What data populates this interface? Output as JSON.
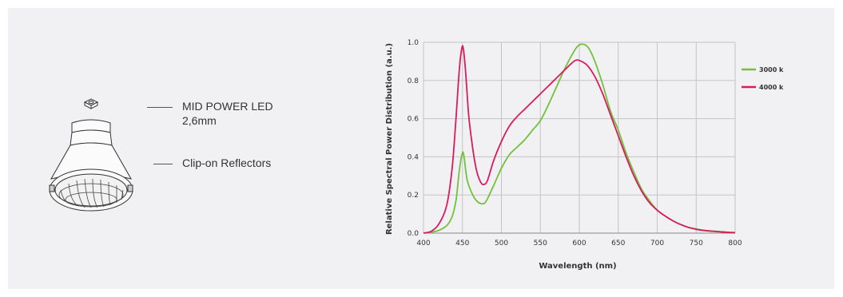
{
  "illustration": {
    "callouts": [
      {
        "line1": "MID POWER LED",
        "line2": "2,6mm"
      },
      {
        "line1": "Clip-on Reflectors",
        "line2": ""
      }
    ]
  },
  "chart_data": {
    "type": "line",
    "title": "",
    "xlabel": "Wavelength (nm)",
    "ylabel": "Relative Spectral Power Distribution (a.u.)",
    "xlim": [
      400,
      800
    ],
    "ylim": [
      0,
      1.0
    ],
    "xticks": [
      400,
      450,
      500,
      550,
      600,
      650,
      700,
      750,
      800
    ],
    "yticks": [
      0.0,
      0.2,
      0.4,
      0.6,
      0.8,
      1.0
    ],
    "ytick_labels": [
      "0.0",
      "0.2",
      "0.4",
      "0.6",
      "0.8",
      "1.0"
    ],
    "grid": true,
    "legend_position": "right",
    "series": [
      {
        "name": "3000 k",
        "color": "#72c13a",
        "points": [
          [
            400,
            0
          ],
          [
            410,
            0.005
          ],
          [
            420,
            0.015
          ],
          [
            430,
            0.04
          ],
          [
            437,
            0.09
          ],
          [
            442,
            0.18
          ],
          [
            446,
            0.33
          ],
          [
            450,
            0.42
          ],
          [
            452,
            0.4
          ],
          [
            456,
            0.28
          ],
          [
            462,
            0.21
          ],
          [
            468,
            0.17
          ],
          [
            474,
            0.155
          ],
          [
            480,
            0.165
          ],
          [
            490,
            0.25
          ],
          [
            500,
            0.34
          ],
          [
            510,
            0.41
          ],
          [
            520,
            0.45
          ],
          [
            530,
            0.49
          ],
          [
            540,
            0.54
          ],
          [
            550,
            0.59
          ],
          [
            560,
            0.67
          ],
          [
            570,
            0.76
          ],
          [
            580,
            0.85
          ],
          [
            590,
            0.93
          ],
          [
            598,
            0.98
          ],
          [
            605,
            0.99
          ],
          [
            612,
            0.97
          ],
          [
            620,
            0.9
          ],
          [
            630,
            0.78
          ],
          [
            640,
            0.64
          ],
          [
            650,
            0.54
          ],
          [
            660,
            0.42
          ],
          [
            670,
            0.32
          ],
          [
            680,
            0.23
          ],
          [
            690,
            0.17
          ],
          [
            700,
            0.12
          ],
          [
            710,
            0.09
          ],
          [
            720,
            0.065
          ],
          [
            730,
            0.045
          ],
          [
            740,
            0.03
          ],
          [
            750,
            0.022
          ],
          [
            760,
            0.015
          ],
          [
            770,
            0.011
          ],
          [
            780,
            0.008
          ],
          [
            790,
            0.005
          ],
          [
            800,
            0.003
          ]
        ]
      },
      {
        "name": "4000 k",
        "color": "#d81b5e",
        "points": [
          [
            400,
            0
          ],
          [
            410,
            0.01
          ],
          [
            420,
            0.05
          ],
          [
            430,
            0.15
          ],
          [
            437,
            0.35
          ],
          [
            442,
            0.62
          ],
          [
            446,
            0.86
          ],
          [
            449,
            0.965
          ],
          [
            451,
            0.97
          ],
          [
            454,
            0.85
          ],
          [
            458,
            0.62
          ],
          [
            463,
            0.45
          ],
          [
            468,
            0.33
          ],
          [
            473,
            0.27
          ],
          [
            477,
            0.255
          ],
          [
            482,
            0.275
          ],
          [
            490,
            0.38
          ],
          [
            500,
            0.48
          ],
          [
            510,
            0.56
          ],
          [
            520,
            0.61
          ],
          [
            530,
            0.65
          ],
          [
            540,
            0.69
          ],
          [
            550,
            0.73
          ],
          [
            560,
            0.77
          ],
          [
            570,
            0.81
          ],
          [
            580,
            0.85
          ],
          [
            590,
            0.89
          ],
          [
            595,
            0.905
          ],
          [
            600,
            0.905
          ],
          [
            610,
            0.88
          ],
          [
            620,
            0.82
          ],
          [
            630,
            0.73
          ],
          [
            640,
            0.62
          ],
          [
            650,
            0.51
          ],
          [
            660,
            0.4
          ],
          [
            670,
            0.3
          ],
          [
            680,
            0.22
          ],
          [
            690,
            0.16
          ],
          [
            700,
            0.12
          ],
          [
            710,
            0.09
          ],
          [
            720,
            0.065
          ],
          [
            730,
            0.045
          ],
          [
            740,
            0.03
          ],
          [
            750,
            0.02
          ],
          [
            760,
            0.014
          ],
          [
            770,
            0.01
          ],
          [
            780,
            0.007
          ],
          [
            790,
            0.004
          ],
          [
            800,
            0.002
          ]
        ]
      }
    ]
  }
}
